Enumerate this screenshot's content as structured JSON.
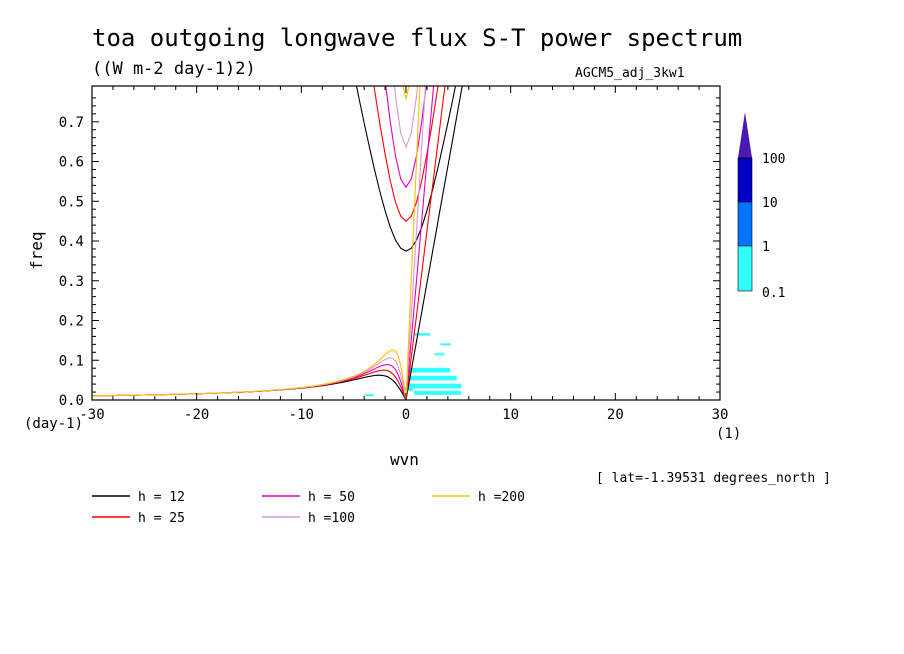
{
  "title": "toa outgoing longwave flux S-T power spectrum",
  "units": "((W m-2 day-1)2)",
  "dataset": "AGCM5_adj_3kw1",
  "location": "[ lat=-1.39531 degrees_north ]",
  "chart_data": {
    "type": "line",
    "xlabel": "wvn",
    "ylabel": "freq",
    "x_unit": "(1)",
    "y_unit": "(day-1)",
    "xlim": [
      -30,
      30
    ],
    "ylim": [
      0,
      0.79
    ],
    "x_ticks": [
      "-30",
      "-20",
      "-10",
      "0",
      "10",
      "20",
      "30"
    ],
    "y_ticks": [
      "0.0",
      "0.1",
      "0.2",
      "0.3",
      "0.4",
      "0.5",
      "0.6",
      "0.7"
    ],
    "series": [
      {
        "name": "h = 12",
        "h": 12,
        "color": "#000000"
      },
      {
        "name": "h = 25",
        "h": 25,
        "color": "#ff0000"
      },
      {
        "name": "h = 50",
        "h": 50,
        "color": "#e000c0"
      },
      {
        "name": "h =100",
        "h": 100,
        "color": "#d898d8"
      },
      {
        "name": "h =200",
        "h": 200,
        "color": "#ffc000"
      }
    ],
    "color_scale": {
      "labels": [
        "100",
        "10",
        "1",
        "0.1"
      ],
      "colors": [
        "#4b1ab4",
        "#0000c8",
        "#0073ff",
        "#32ffff"
      ]
    },
    "power_patches": [
      {
        "x": 1.5,
        "y": 0.165,
        "w": 1.6,
        "h": 0.006
      },
      {
        "x": 3.8,
        "y": 0.14,
        "w": 1.0,
        "h": 0.005
      },
      {
        "x": 3.2,
        "y": 0.115,
        "w": 1.0,
        "h": 0.005
      },
      {
        "x": 2.2,
        "y": 0.075,
        "w": 4.0,
        "h": 0.012
      },
      {
        "x": 2.6,
        "y": 0.055,
        "w": 4.5,
        "h": 0.012
      },
      {
        "x": 2.8,
        "y": 0.035,
        "w": 5.0,
        "h": 0.012
      },
      {
        "x": 3.0,
        "y": 0.018,
        "w": 4.5,
        "h": 0.01
      },
      {
        "x": 0.2,
        "y": 0.028,
        "w": 1.0,
        "h": 0.01
      },
      {
        "x": -3.5,
        "y": 0.012,
        "w": 0.9,
        "h": 0.005
      }
    ]
  }
}
